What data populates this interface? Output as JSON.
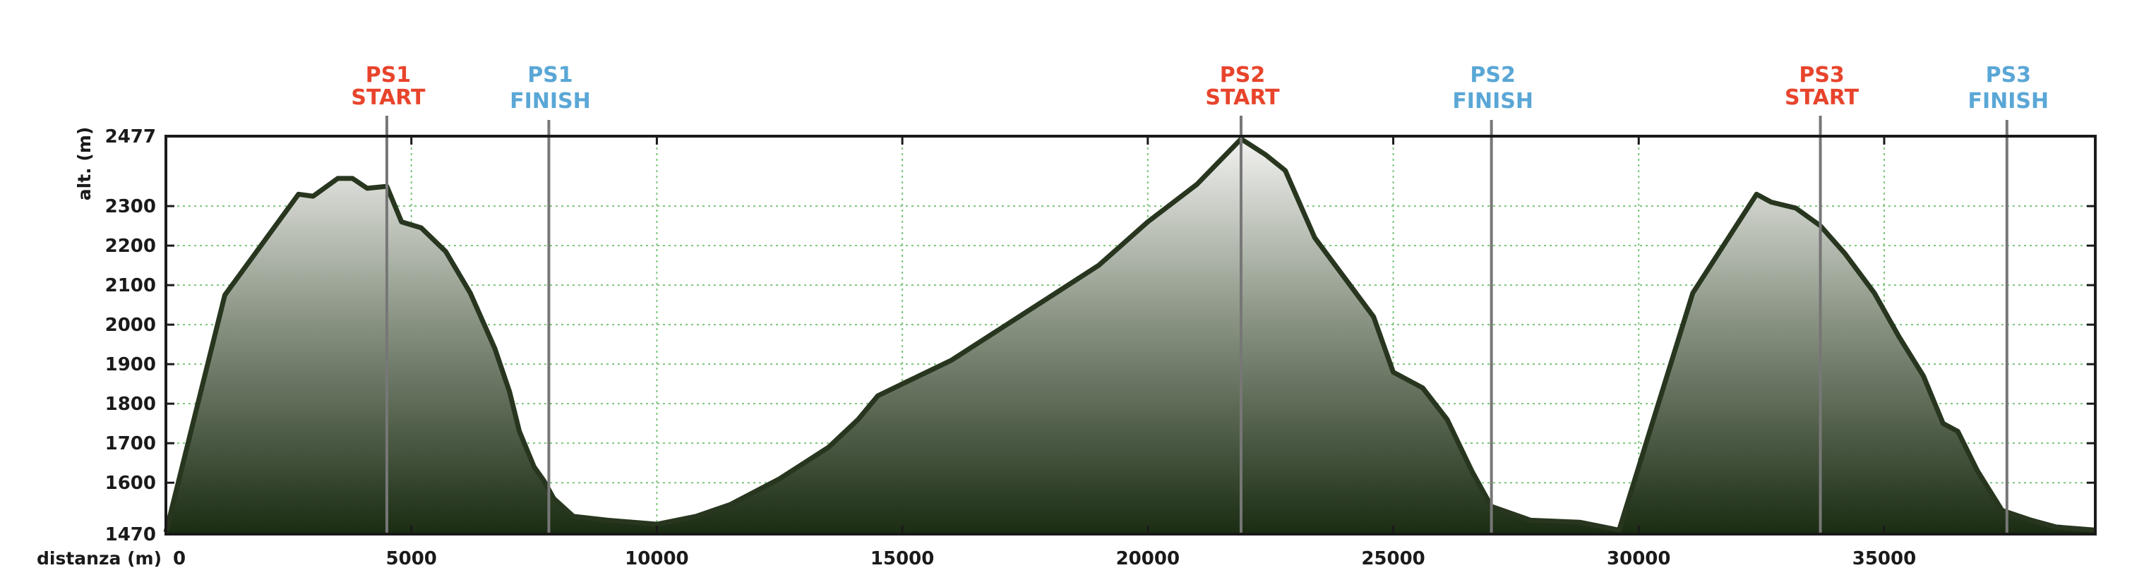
{
  "chart_data": {
    "type": "area",
    "xlabel": "distanza (m)",
    "ylabel": "alt. (m)",
    "xlim": [
      0,
      39300
    ],
    "ylim": [
      1470,
      2477
    ],
    "x_ticks": [
      0,
      5000,
      10000,
      15000,
      20000,
      25000,
      30000,
      35000
    ],
    "y_ticks": [
      1470,
      1600,
      1700,
      1800,
      1900,
      2000,
      2100,
      2200,
      2300,
      2477
    ],
    "grid": true,
    "colors": {
      "start": "#e8442c",
      "finish": "#5aa7d6",
      "line": "#28361f",
      "fill_top": "#f2f2f0",
      "fill_bottom": "#1a2c12",
      "grid": "#7cc47c"
    },
    "markers": [
      {
        "line1": "PS1",
        "line2": "START",
        "x": 4500,
        "kind": "start"
      },
      {
        "line1": "PS1",
        "line2": "FINISH",
        "x": 7800,
        "kind": "finish"
      },
      {
        "line1": "PS2",
        "line2": "START",
        "x": 21900,
        "kind": "start"
      },
      {
        "line1": "PS2",
        "line2": "FINISH",
        "x": 27000,
        "kind": "finish"
      },
      {
        "line1": "PS3",
        "line2": "START",
        "x": 33700,
        "kind": "start"
      },
      {
        "line1": "PS3",
        "line2": "FINISH",
        "x": 37500,
        "kind": "finish"
      }
    ],
    "series": [
      {
        "x": [
          0,
          1200,
          2700,
          3000,
          3500,
          3800,
          4100,
          4500,
          4800,
          5200,
          5700,
          6200,
          6700,
          7000,
          7200,
          7500,
          7700,
          7900,
          8300,
          9000,
          10000,
          10800,
          11500,
          12500,
          13500,
          14100,
          14500,
          15000,
          16000,
          17000,
          18000,
          19000,
          20000,
          21000,
          21900,
          22400,
          22800,
          23400,
          24000,
          24600,
          25000,
          25600,
          26100,
          26600,
          27000,
          27800,
          28800,
          29600,
          31100,
          32400,
          32700,
          33200,
          33700,
          34200,
          34800,
          35300,
          35800,
          36200,
          36500,
          36900,
          37400,
          38000,
          38500,
          39300
        ],
        "y": [
          1475,
          2075,
          2330,
          2325,
          2370,
          2370,
          2345,
          2350,
          2260,
          2245,
          2185,
          2080,
          1940,
          1830,
          1730,
          1640,
          1605,
          1560,
          1515,
          1505,
          1495,
          1515,
          1545,
          1610,
          1690,
          1760,
          1820,
          1850,
          1910,
          1990,
          2070,
          2150,
          2260,
          2355,
          2470,
          2430,
          2390,
          2220,
          2120,
          2020,
          1880,
          1840,
          1760,
          1630,
          1540,
          1505,
          1500,
          1480,
          2080,
          2330,
          2310,
          2295,
          2250,
          2180,
          2080,
          1970,
          1870,
          1750,
          1730,
          1630,
          1530,
          1505,
          1488,
          1480
        ]
      }
    ]
  }
}
